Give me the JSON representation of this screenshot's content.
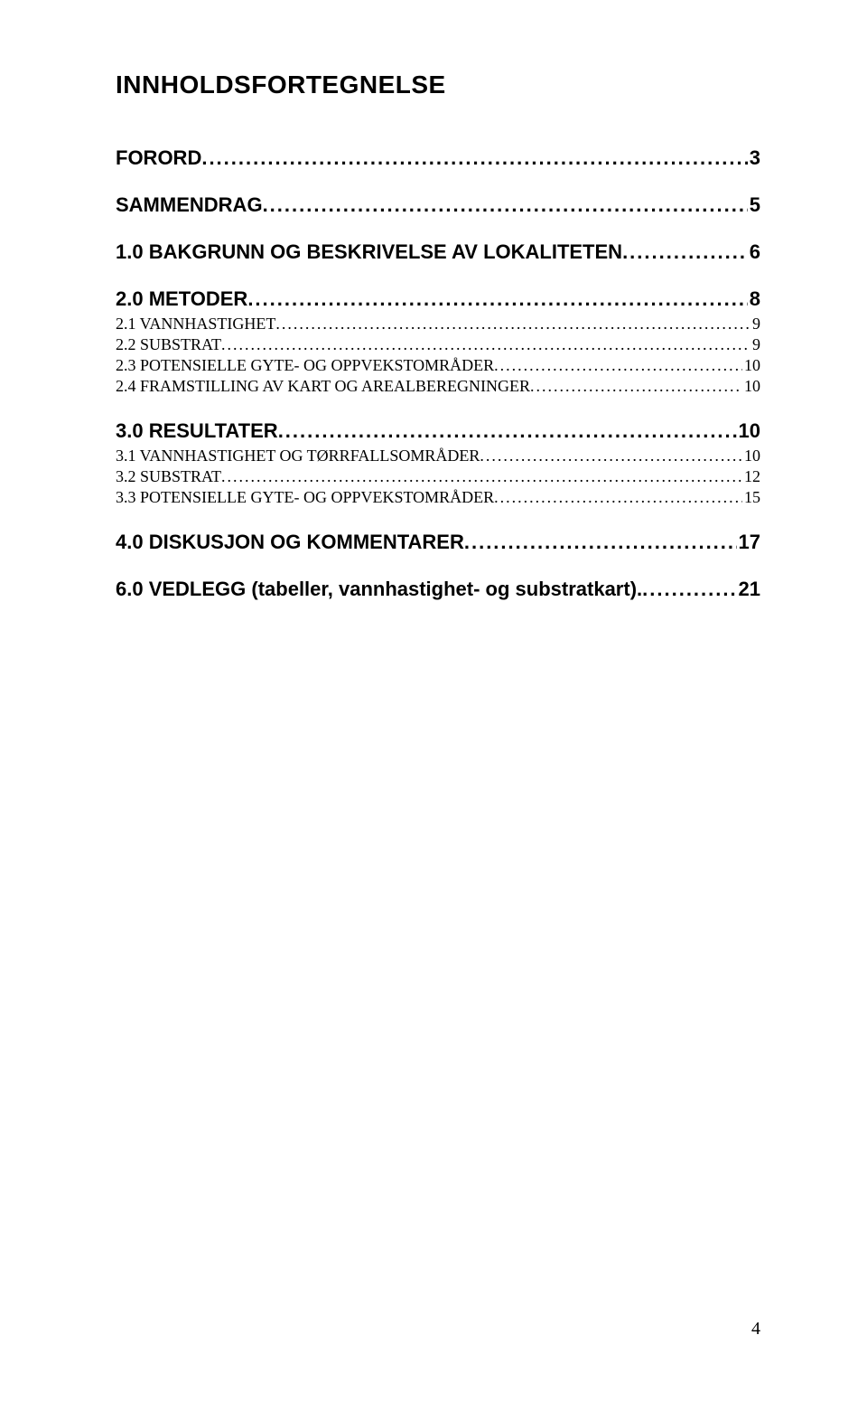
{
  "title": "INNHOLDSFORTEGNELSE",
  "page_number": "4",
  "colors": {
    "background": "#ffffff",
    "text": "#000000"
  },
  "typography": {
    "title_fontsize": 28,
    "level1_fontsize": 22,
    "level2_fontsize": 18,
    "level1_font": "Arial",
    "level2_font": "Times New Roman",
    "page_number_fontsize": 20
  },
  "toc": [
    {
      "label": "FORORD",
      "page": "3",
      "level": 1
    },
    {
      "label": "SAMMENDRAG",
      "page": "5",
      "level": 1
    },
    {
      "label": "1.0 BAKGRUNN OG BESKRIVELSE AV LOKALITETEN",
      "page": "6",
      "level": 1
    },
    {
      "label": "2.0 METODER",
      "page": "8",
      "level": 1
    },
    {
      "label": "2.1 VANNHASTIGHET",
      "page": "9",
      "level": 2
    },
    {
      "label": "2.2 SUBSTRAT",
      "page": "9",
      "level": 2
    },
    {
      "label": "2.3 POTENSIELLE GYTE- OG OPPVEKSTOMRÅDER",
      "page": "10",
      "level": 2
    },
    {
      "label": "2.4 FRAMSTILLING AV KART OG AREALBEREGNINGER",
      "page": "10",
      "level": 2
    },
    {
      "label": "3.0 RESULTATER",
      "page": "10",
      "level": 1
    },
    {
      "label": "3.1 VANNHASTIGHET OG TØRRFALLSOMRÅDER",
      "page": "10",
      "level": 2
    },
    {
      "label": "3.2 SUBSTRAT",
      "page": "12",
      "level": 2
    },
    {
      "label": "3.3 POTENSIELLE GYTE- OG OPPVEKSTOMRÅDER",
      "page": "15",
      "level": 2
    },
    {
      "label": "4.0 DISKUSJON OG KOMMENTARER",
      "page": "17",
      "level": 1
    },
    {
      "label": "6.0 VEDLEGG (tabeller, vannhastighet- og substratkart).",
      "page": "21",
      "level": 1
    }
  ]
}
